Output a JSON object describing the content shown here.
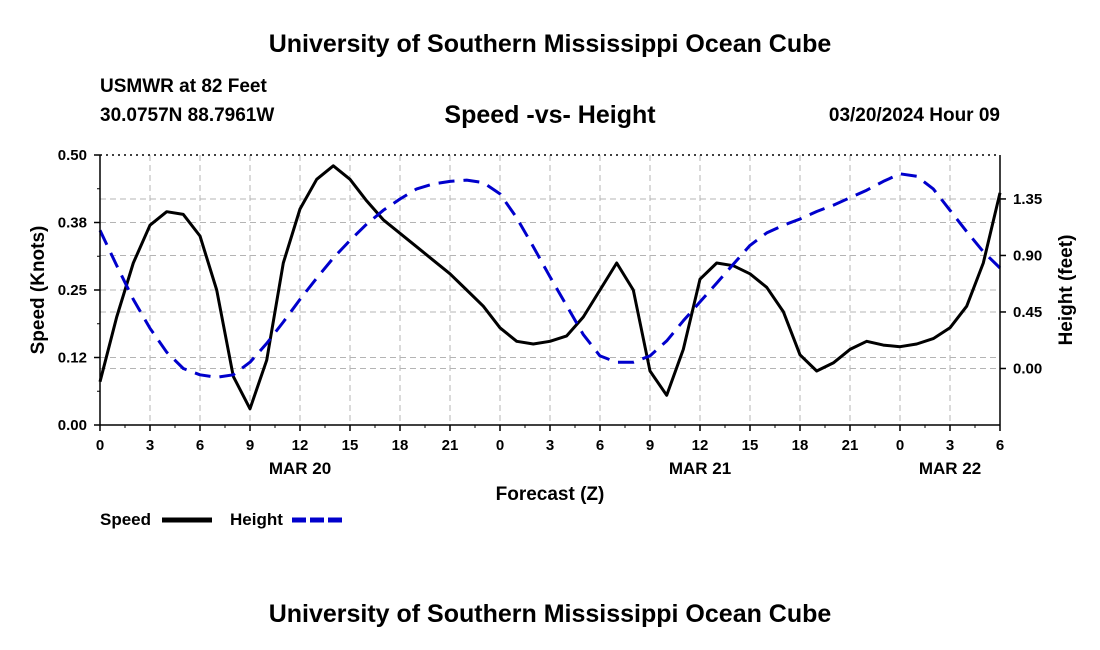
{
  "header": {
    "title": "University of Southern Mississippi Ocean Cube",
    "station": "USMWR at 82 Feet",
    "coords": "30.0757N  88.7961W",
    "subtitle": "Speed -vs- Height",
    "date": "03/20/2024 Hour 09"
  },
  "footer": {
    "title": "University of Southern Mississippi Ocean Cube"
  },
  "chart_data": {
    "type": "line",
    "xlabel": "Forecast (Z)",
    "ylabel_left": "Speed (Knots)",
    "ylabel_right": "Height (feet)",
    "xlim": [
      0,
      54
    ],
    "ylim_left": [
      0,
      0.5
    ],
    "ylim_right": [
      -0.45,
      1.7
    ],
    "x_ticks": [
      0,
      3,
      6,
      9,
      12,
      15,
      18,
      21,
      24,
      27,
      30,
      33,
      36,
      39,
      42,
      45,
      48,
      51,
      54
    ],
    "x_tick_labels": [
      "0",
      "3",
      "6",
      "9",
      "12",
      "15",
      "18",
      "21",
      "0",
      "3",
      "6",
      "9",
      "12",
      "15",
      "18",
      "21",
      "0",
      "3",
      "6"
    ],
    "date_labels": [
      {
        "x": 12,
        "label": "MAR 20"
      },
      {
        "x": 36,
        "label": "MAR 21"
      },
      {
        "x": 51,
        "label": "MAR 22"
      }
    ],
    "left_ticks": [
      0.0,
      0.125,
      0.25,
      0.375,
      0.5
    ],
    "left_tick_labels": [
      "0.00",
      "0.12",
      "0.25",
      "0.38",
      "0.50"
    ],
    "right_ticks": [
      0.0,
      0.45,
      0.9,
      1.35
    ],
    "right_tick_labels": [
      "0.00",
      "0.45",
      "0.90",
      "1.35"
    ],
    "grid": true,
    "legend": {
      "position": "bottom-left"
    },
    "series": [
      {
        "name": "Speed",
        "axis": "left",
        "color": "#000000",
        "style": "solid",
        "x": [
          0,
          1,
          2,
          3,
          4,
          5,
          6,
          7,
          8,
          9,
          10,
          11,
          12,
          13,
          14,
          15,
          16,
          17,
          18,
          19,
          20,
          21,
          22,
          23,
          24,
          25,
          26,
          27,
          28,
          29,
          30,
          31,
          32,
          33,
          34,
          35,
          36,
          37,
          38,
          39,
          40,
          41,
          42,
          43,
          44,
          45,
          46,
          47,
          48,
          49,
          50,
          51,
          52,
          53,
          54
        ],
        "values": [
          0.08,
          0.2,
          0.3,
          0.37,
          0.395,
          0.39,
          0.35,
          0.25,
          0.09,
          0.03,
          0.12,
          0.3,
          0.4,
          0.455,
          0.48,
          0.455,
          0.415,
          0.38,
          0.355,
          0.33,
          0.305,
          0.28,
          0.25,
          0.22,
          0.18,
          0.155,
          0.15,
          0.155,
          0.165,
          0.2,
          0.25,
          0.3,
          0.25,
          0.1,
          0.055,
          0.14,
          0.27,
          0.3,
          0.295,
          0.28,
          0.255,
          0.21,
          0.13,
          0.1,
          0.115,
          0.14,
          0.155,
          0.148,
          0.145,
          0.15,
          0.16,
          0.18,
          0.22,
          0.3,
          0.43
        ]
      },
      {
        "name": "Height",
        "axis": "right",
        "color": "#0000cc",
        "style": "dashed",
        "x": [
          0,
          1,
          2,
          3,
          4,
          5,
          6,
          7,
          8,
          9,
          10,
          11,
          12,
          13,
          14,
          15,
          16,
          17,
          18,
          19,
          20,
          21,
          22,
          23,
          24,
          25,
          26,
          27,
          28,
          29,
          30,
          31,
          32,
          33,
          34,
          35,
          36,
          37,
          38,
          39,
          40,
          41,
          42,
          43,
          44,
          45,
          46,
          47,
          48,
          49,
          50,
          51,
          52,
          53,
          54
        ],
        "values": [
          1.1,
          0.82,
          0.55,
          0.32,
          0.13,
          0.0,
          -0.05,
          -0.07,
          -0.05,
          0.05,
          0.2,
          0.37,
          0.55,
          0.72,
          0.88,
          1.02,
          1.15,
          1.26,
          1.35,
          1.43,
          1.47,
          1.49,
          1.5,
          1.48,
          1.39,
          1.2,
          0.97,
          0.73,
          0.5,
          0.27,
          0.1,
          0.05,
          0.05,
          0.1,
          0.22,
          0.38,
          0.53,
          0.68,
          0.83,
          0.98,
          1.08,
          1.14,
          1.19,
          1.25,
          1.3,
          1.36,
          1.42,
          1.49,
          1.55,
          1.53,
          1.43,
          1.26,
          1.09,
          0.93,
          0.8
        ]
      }
    ]
  }
}
